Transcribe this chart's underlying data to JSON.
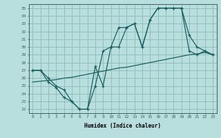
{
  "xlabel": "Humidex (Indice chaleur)",
  "bg_color": "#b8dede",
  "grid_color": "#90bebe",
  "line_color": "#1a6060",
  "xlim": [
    -0.5,
    23.5
  ],
  "ylim": [
    21.5,
    35.5
  ],
  "yticks": [
    22,
    23,
    24,
    25,
    26,
    27,
    28,
    29,
    30,
    31,
    32,
    33,
    34,
    35
  ],
  "xticks": [
    0,
    1,
    2,
    3,
    4,
    5,
    6,
    7,
    8,
    9,
    10,
    11,
    12,
    13,
    14,
    15,
    16,
    17,
    18,
    19,
    20,
    21,
    22,
    23
  ],
  "line1_x": [
    0,
    1,
    2,
    3,
    4,
    5,
    6,
    7,
    8,
    9,
    10,
    11,
    12,
    13,
    14,
    15,
    16,
    17,
    18,
    19,
    20,
    21,
    22,
    23
  ],
  "line1_y": [
    27.0,
    27.0,
    26.0,
    25.0,
    24.5,
    23.0,
    22.0,
    22.0,
    25.0,
    29.5,
    30.0,
    32.5,
    32.5,
    33.0,
    30.0,
    33.5,
    35.0,
    35.0,
    35.0,
    35.0,
    31.5,
    30.0,
    29.5,
    29.0
  ],
  "line2_x": [
    0,
    1,
    2,
    3,
    4,
    5,
    6,
    7,
    8,
    9,
    10,
    11,
    12,
    13,
    14,
    15,
    16,
    17,
    18,
    19,
    20,
    21,
    22,
    23
  ],
  "line2_y": [
    27.0,
    27.0,
    25.5,
    24.8,
    23.5,
    23.0,
    22.0,
    22.0,
    27.5,
    25.0,
    30.0,
    30.0,
    32.5,
    33.0,
    30.0,
    33.5,
    35.0,
    35.0,
    35.0,
    35.0,
    29.5,
    29.0,
    29.5,
    29.0
  ],
  "line3_x": [
    0,
    1,
    2,
    3,
    4,
    5,
    6,
    7,
    8,
    9,
    10,
    11,
    12,
    13,
    14,
    15,
    16,
    17,
    18,
    19,
    20,
    21,
    22,
    23
  ],
  "line3_y": [
    25.5,
    25.6,
    25.7,
    25.8,
    26.0,
    26.1,
    26.3,
    26.5,
    26.7,
    26.9,
    27.1,
    27.3,
    27.4,
    27.6,
    27.8,
    28.0,
    28.2,
    28.4,
    28.6,
    28.8,
    29.0,
    29.1,
    29.3,
    29.0
  ]
}
